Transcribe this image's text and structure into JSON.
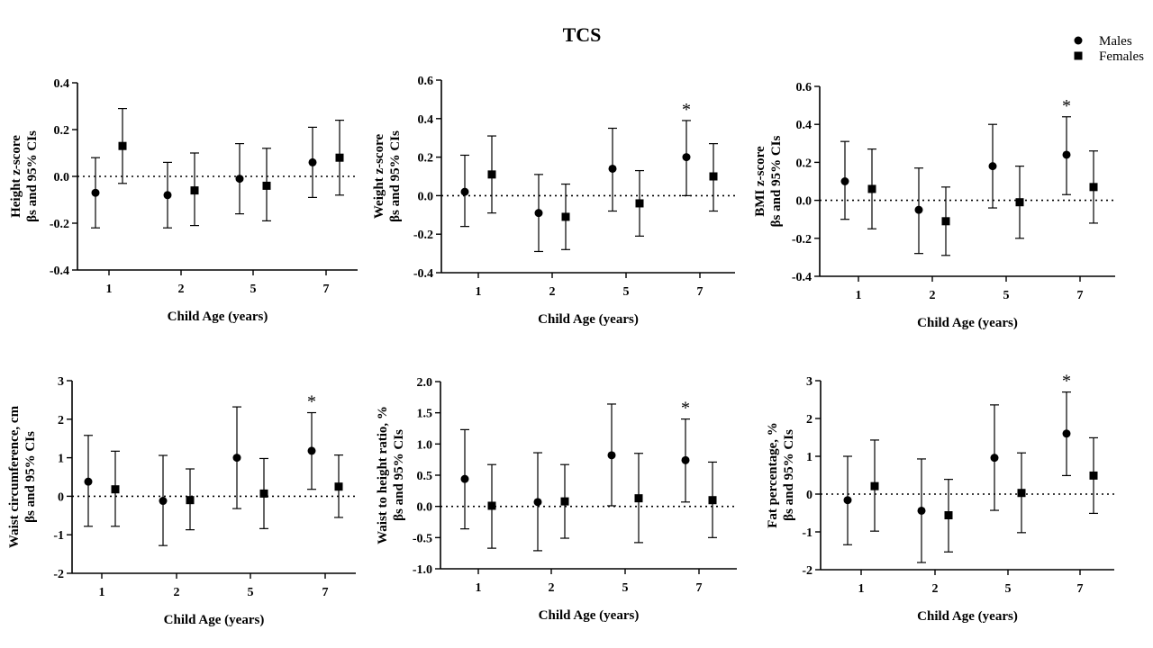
{
  "title": "TCS",
  "legend": {
    "males": "Males",
    "females": "Females"
  },
  "chart_data": [
    {
      "type": "scatter",
      "ylabel_line1": "Height z-score",
      "ylabel_line2": "βs and 95% CIs",
      "xlabel": "Child Age (years)",
      "categories": [
        "1",
        "2",
        "5",
        "7"
      ],
      "ylim": [
        -0.4,
        0.4
      ],
      "yticks": [
        -0.4,
        -0.2,
        0.0,
        0.2,
        0.4
      ],
      "ytick_labels": [
        "-0.4",
        "-0.2",
        "0.0",
        "0.2",
        "0.4"
      ],
      "series": [
        {
          "name": "Males",
          "values": [
            -0.07,
            -0.08,
            -0.01,
            0.06
          ],
          "lower": [
            -0.22,
            -0.22,
            -0.16,
            -0.09
          ],
          "upper": [
            0.08,
            0.06,
            0.14,
            0.21
          ]
        },
        {
          "name": "Females",
          "values": [
            0.13,
            -0.06,
            -0.04,
            0.08
          ],
          "lower": [
            -0.03,
            -0.21,
            -0.19,
            -0.08
          ],
          "upper": [
            0.29,
            0.1,
            0.12,
            0.24
          ]
        }
      ],
      "annotations": []
    },
    {
      "type": "scatter",
      "ylabel_line1": "Weight  z-score",
      "ylabel_line2": "βs and 95% CIs",
      "xlabel": "Child Age (years)",
      "categories": [
        "1",
        "2",
        "5",
        "7"
      ],
      "ylim": [
        -0.4,
        0.6
      ],
      "yticks": [
        -0.4,
        -0.2,
        0.0,
        0.2,
        0.4,
        0.6
      ],
      "ytick_labels": [
        "-0.4",
        "-0.2",
        "0.0",
        "0.2",
        "0.4",
        "0.6"
      ],
      "series": [
        {
          "name": "Males",
          "values": [
            0.02,
            -0.09,
            0.14,
            0.2
          ],
          "lower": [
            -0.16,
            -0.29,
            -0.08,
            0.0
          ],
          "upper": [
            0.21,
            0.11,
            0.35,
            0.39
          ]
        },
        {
          "name": "Females",
          "values": [
            0.11,
            -0.11,
            -0.04,
            0.1
          ],
          "lower": [
            -0.09,
            -0.28,
            -0.21,
            -0.08
          ],
          "upper": [
            0.31,
            0.06,
            0.13,
            0.27
          ]
        }
      ],
      "annotations": [
        {
          "category": "7",
          "series": "Males",
          "text": "*"
        }
      ]
    },
    {
      "type": "scatter",
      "ylabel_line1": "BMI z-score",
      "ylabel_line2": "βs and 95% CIs",
      "xlabel": "Child Age (years)",
      "categories": [
        "1",
        "2",
        "5",
        "7"
      ],
      "ylim": [
        -0.4,
        0.6
      ],
      "yticks": [
        -0.4,
        -0.2,
        0.0,
        0.2,
        0.4,
        0.6
      ],
      "ytick_labels": [
        "-0.4",
        "-0.2",
        "0.0",
        "0.2",
        "0.4",
        "0.6"
      ],
      "series": [
        {
          "name": "Males",
          "values": [
            0.1,
            -0.05,
            0.18,
            0.24
          ],
          "lower": [
            -0.1,
            -0.28,
            -0.04,
            0.03
          ],
          "upper": [
            0.31,
            0.17,
            0.4,
            0.44
          ]
        },
        {
          "name": "Females",
          "values": [
            0.06,
            -0.11,
            -0.01,
            0.07
          ],
          "lower": [
            -0.15,
            -0.29,
            -0.2,
            -0.12
          ],
          "upper": [
            0.27,
            0.07,
            0.18,
            0.26
          ]
        }
      ],
      "annotations": [
        {
          "category": "7",
          "series": "Males",
          "text": "*"
        }
      ]
    },
    {
      "type": "scatter",
      "ylabel_line1": "Waist circumference, cm",
      "ylabel_line2": "βs and 95% CIs",
      "xlabel": "Child Age (years)",
      "categories": [
        "1",
        "2",
        "5",
        "7"
      ],
      "ylim": [
        -2,
        3
      ],
      "yticks": [
        -2,
        -1,
        0,
        1,
        2,
        3
      ],
      "ytick_labels": [
        "-2",
        "-1",
        "0",
        "1",
        "2",
        "3"
      ],
      "series": [
        {
          "name": "Males",
          "values": [
            0.38,
            -0.12,
            1.0,
            1.18
          ],
          "lower": [
            -0.78,
            -1.28,
            -0.32,
            0.18
          ],
          "upper": [
            1.58,
            1.06,
            2.32,
            2.17
          ]
        },
        {
          "name": "Females",
          "values": [
            0.18,
            -0.1,
            0.07,
            0.25
          ],
          "lower": [
            -0.78,
            -0.87,
            -0.84,
            -0.55
          ],
          "upper": [
            1.17,
            0.71,
            0.98,
            1.07
          ]
        }
      ],
      "annotations": [
        {
          "category": "7",
          "series": "Males",
          "text": "*"
        }
      ]
    },
    {
      "type": "scatter",
      "ylabel_line1": "Waist to height ratio, %",
      "ylabel_line2": "βs and 95% CIs",
      "xlabel": "Child Age (years)",
      "categories": [
        "1",
        "2",
        "5",
        "7"
      ],
      "ylim": [
        -1.0,
        2.0
      ],
      "yticks": [
        -1.0,
        -0.5,
        0.0,
        0.5,
        1.0,
        1.5,
        2.0
      ],
      "ytick_labels": [
        "-1.0",
        "-0.5",
        "0.0",
        "0.5",
        "1.0",
        "1.5",
        "2.0"
      ],
      "series": [
        {
          "name": "Males",
          "values": [
            0.44,
            0.07,
            0.82,
            0.74
          ],
          "lower": [
            -0.36,
            -0.71,
            0.01,
            0.07
          ],
          "upper": [
            1.23,
            0.86,
            1.64,
            1.4
          ]
        },
        {
          "name": "Females",
          "values": [
            0.01,
            0.08,
            0.13,
            0.1
          ],
          "lower": [
            -0.67,
            -0.51,
            -0.58,
            -0.5
          ],
          "upper": [
            0.67,
            0.67,
            0.85,
            0.71
          ]
        }
      ],
      "annotations": [
        {
          "category": "7",
          "series": "Males",
          "text": "*"
        }
      ]
    },
    {
      "type": "scatter",
      "ylabel_line1": "Fat percentage, %",
      "ylabel_line2": "βs and 95% CIs",
      "xlabel": "Child Age (years)",
      "categories": [
        "1",
        "2",
        "5",
        "7"
      ],
      "ylim": [
        -2,
        3
      ],
      "yticks": [
        -2,
        -1,
        0,
        1,
        2,
        3
      ],
      "ytick_labels": [
        "-2",
        "-1",
        "0",
        "1",
        "2",
        "3"
      ],
      "series": [
        {
          "name": "Males",
          "values": [
            -0.16,
            -0.44,
            0.96,
            1.6
          ],
          "lower": [
            -1.34,
            -1.81,
            -0.43,
            0.49
          ],
          "upper": [
            1.0,
            0.93,
            2.36,
            2.7
          ]
        },
        {
          "name": "Females",
          "values": [
            0.21,
            -0.56,
            0.03,
            0.49
          ],
          "lower": [
            -0.98,
            -1.53,
            -1.02,
            -0.51
          ],
          "upper": [
            1.43,
            0.39,
            1.09,
            1.49
          ]
        }
      ],
      "annotations": [
        {
          "category": "7",
          "series": "Males",
          "text": "*"
        }
      ]
    }
  ]
}
